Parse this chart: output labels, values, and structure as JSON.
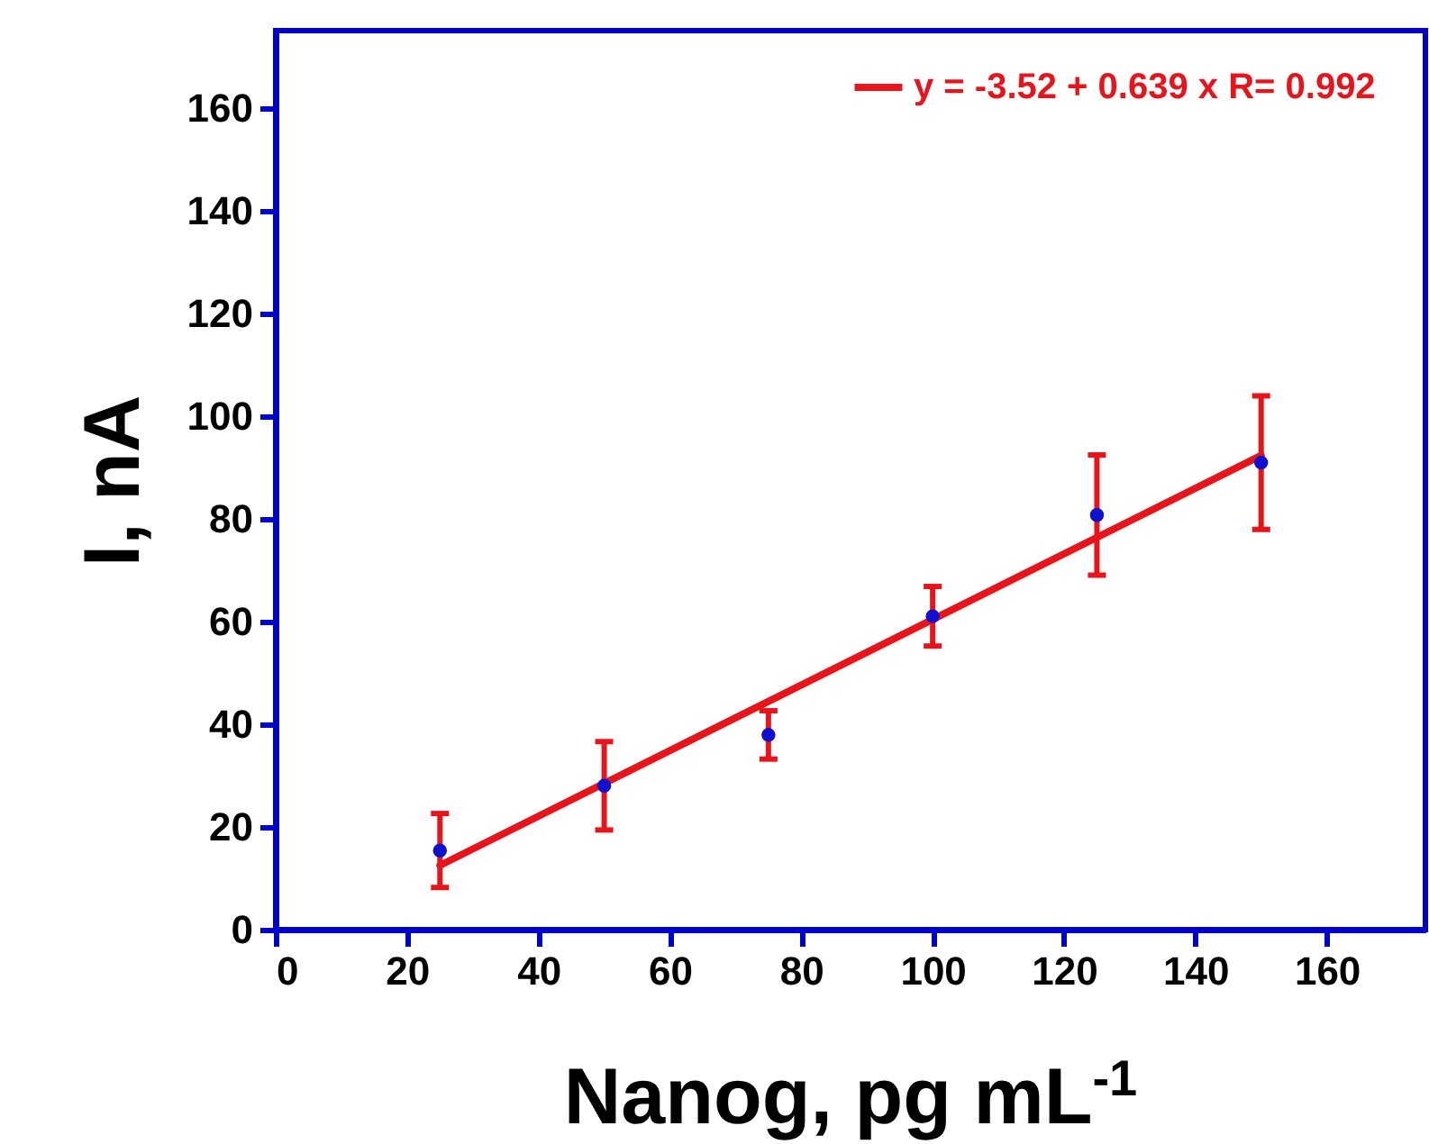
{
  "chart_data": {
    "type": "scatter",
    "xlabel": "Nanog, pg mL$^{-1}$",
    "ylabel": "I, nA",
    "xlim": [
      0,
      175
    ],
    "ylim": [
      0,
      175
    ],
    "xticks": [
      0,
      20,
      40,
      60,
      80,
      100,
      120,
      140,
      160
    ],
    "yticks": [
      0,
      20,
      40,
      60,
      80,
      100,
      120,
      140,
      160
    ],
    "grid": false,
    "legend": "top right",
    "series": [
      {
        "color": "#1010d0",
        "marker": "circle",
        "x": [
          25,
          50,
          75,
          100,
          125,
          150
        ],
        "values": [
          15.4,
          28,
          37.9,
          61,
          80.7,
          90.9
        ],
        "errors": [
          7.2,
          8.6,
          4.7,
          5.8,
          11.7,
          13
        ]
      },
      {
        "type": "line",
        "name": "y = -3.52 + 0.639 x   R= 0.992",
        "color": "#e8141c",
        "x": [
          25,
          150
        ],
        "values": [
          12.5,
          92.3
        ],
        "line_style": "solid"
      }
    ]
  }
}
